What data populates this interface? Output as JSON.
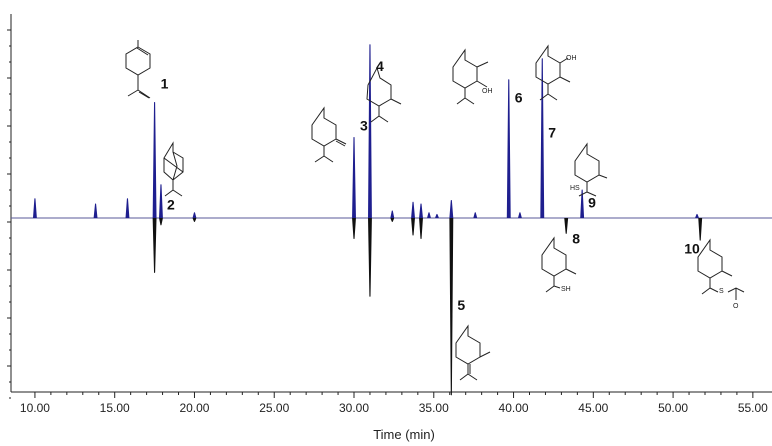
{
  "chart_data": {
    "type": "line",
    "title": "",
    "xlabel": "Time (min)",
    "ylabel": "",
    "xlim": [
      8.5,
      56.2
    ],
    "ylim": [
      -1.1,
      1.0
    ],
    "xticks": [
      "10.00",
      "15.00",
      "20.00",
      "25.00",
      "30.00",
      "35.00",
      "40.00",
      "45.00",
      "50.00",
      "55.00"
    ],
    "grid": false,
    "series": [
      {
        "direction": "up",
        "color": "#1f1f8f",
        "peaks": [
          {
            "x": 10.0,
            "y": 0.11
          },
          {
            "x": 13.8,
            "y": 0.08
          },
          {
            "x": 15.8,
            "y": 0.11
          },
          {
            "x": 17.5,
            "y": 0.66
          },
          {
            "x": 17.9,
            "y": 0.19
          },
          {
            "x": 20.0,
            "y": 0.03
          },
          {
            "x": 30.0,
            "y": 0.46
          },
          {
            "x": 31.0,
            "y": 0.99
          },
          {
            "x": 32.4,
            "y": 0.04
          },
          {
            "x": 33.7,
            "y": 0.09
          },
          {
            "x": 34.2,
            "y": 0.08
          },
          {
            "x": 34.7,
            "y": 0.03
          },
          {
            "x": 35.2,
            "y": 0.02
          },
          {
            "x": 36.1,
            "y": 0.1
          },
          {
            "x": 37.6,
            "y": 0.03
          },
          {
            "x": 39.7,
            "y": 0.79
          },
          {
            "x": 40.4,
            "y": 0.03
          },
          {
            "x": 41.8,
            "y": 0.91
          },
          {
            "x": 44.3,
            "y": 0.16
          },
          {
            "x": 51.5,
            "y": 0.02
          }
        ]
      },
      {
        "direction": "down",
        "color": "#111111",
        "peaks": [
          {
            "x": 17.5,
            "y": -0.32
          },
          {
            "x": 17.9,
            "y": -0.04
          },
          {
            "x": 20.0,
            "y": -0.02
          },
          {
            "x": 30.0,
            "y": -0.12
          },
          {
            "x": 31.0,
            "y": -0.46
          },
          {
            "x": 32.4,
            "y": -0.02
          },
          {
            "x": 33.7,
            "y": -0.1
          },
          {
            "x": 34.2,
            "y": -0.12
          },
          {
            "x": 36.1,
            "y": -1.04
          },
          {
            "x": 43.3,
            "y": -0.09
          },
          {
            "x": 51.7,
            "y": -0.13
          }
        ]
      }
    ],
    "annotations": [
      {
        "text": "1",
        "x": 17.5,
        "y": 0.74,
        "structure": "s1"
      },
      {
        "text": "2",
        "x": 17.9,
        "y": 0.05,
        "structure": "s2"
      },
      {
        "text": "3",
        "x": 30.0,
        "y": 0.5,
        "structure": "s3"
      },
      {
        "text": "4",
        "x": 31.0,
        "y": 0.84,
        "structure": "s4"
      },
      {
        "text": "5",
        "x": 36.1,
        "y": -0.54,
        "structure": "s5"
      },
      {
        "text": "6",
        "x": 39.7,
        "y": 0.66,
        "structure": "s6"
      },
      {
        "text": "7",
        "x": 41.8,
        "y": 0.46,
        "structure": "s7"
      },
      {
        "text": "8",
        "x": 43.3,
        "y": -0.15,
        "structure": "s8"
      },
      {
        "text": "9",
        "x": 44.3,
        "y": 0.06,
        "structure": "s9"
      },
      {
        "text": "10",
        "x": 51.7,
        "y": -0.21,
        "structure": "s10"
      }
    ],
    "structure_text": {
      "oh": "OH",
      "hs": "HS",
      "sh": "SH",
      "s": "S",
      "o": "O"
    }
  }
}
